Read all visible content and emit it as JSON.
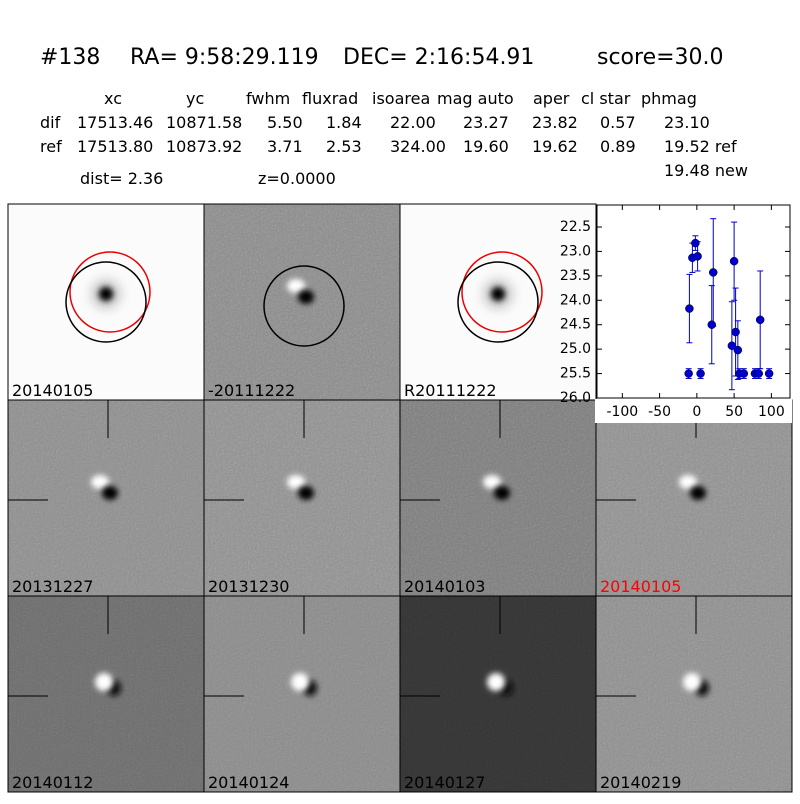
{
  "header": {
    "id": "#138",
    "ra": "RA= 9:58:29.119",
    "dec": "DEC= 2:16:54.91",
    "score": "score=30.0"
  },
  "table": {
    "columns": [
      "xc",
      "yc",
      "fwhm",
      "fluxrad",
      "isoarea",
      "mag auto",
      "aper",
      "cl star",
      "phmag"
    ],
    "rows": [
      [
        "dif",
        "17513.46",
        "10871.58",
        "5.50",
        "1.84",
        "22.00",
        "23.27",
        "23.82",
        "0.57",
        "23.10"
      ],
      [
        "ref",
        "17513.80",
        "10873.92",
        "3.71",
        "2.53",
        "324.00",
        "19.60",
        "19.62",
        "0.89",
        "19.52 ref"
      ]
    ],
    "phmag_new": "19.48 new"
  },
  "info": {
    "dist": "dist=  2.36",
    "z": "z=0.0000"
  },
  "stamps": [
    {
      "label": "20140105",
      "color": "#000000"
    },
    {
      "label": "-20111222",
      "color": "#000000"
    },
    {
      "label": "R20111222",
      "color": "#000000"
    },
    {
      "label": "20131227",
      "color": "#000000"
    },
    {
      "label": "20131230",
      "color": "#000000"
    },
    {
      "label": "20140103",
      "color": "#000000"
    },
    {
      "label": "20140105",
      "color": "#ff0000"
    },
    {
      "label": "20140112",
      "color": "#000000"
    },
    {
      "label": "20140124",
      "color": "#000000"
    },
    {
      "label": "20140127",
      "color": "#000000"
    },
    {
      "label": "20140219",
      "color": "#000000"
    }
  ],
  "chart_data": {
    "type": "scatter",
    "color": "#0000cc",
    "x": [
      -11,
      -10,
      -6,
      -2,
      1,
      5,
      20,
      22,
      47,
      50,
      52,
      55,
      57,
      63,
      78,
      83,
      85,
      97
    ],
    "values": [
      25.5,
      24.17,
      23.13,
      22.83,
      23.1,
      25.5,
      24.5,
      23.43,
      24.93,
      23.2,
      24.65,
      25.02,
      25.5,
      25.5,
      25.5,
      25.5,
      24.4,
      25.5
    ],
    "errors": [
      0.1,
      0.7,
      0.3,
      0.15,
      0.3,
      0.1,
      0.8,
      1.1,
      0.9,
      0.8,
      0.9,
      0.6,
      0.1,
      0.1,
      0.1,
      0.1,
      1.0,
      0.1
    ],
    "xlim": [
      -134,
      125
    ],
    "ylim": [
      26,
      22.05
    ],
    "xticks": [
      -100,
      -50,
      0,
      50,
      100
    ],
    "yticks": [
      22.5,
      {
        "value": 23,
        "label": "23.0"
      },
      23.5,
      {
        "value": 24,
        "label": "24.0"
      },
      24.5,
      {
        "value": 25,
        "label": "25.0"
      },
      25.5,
      {
        "value": 26,
        "label": "26.0"
      }
    ]
  }
}
